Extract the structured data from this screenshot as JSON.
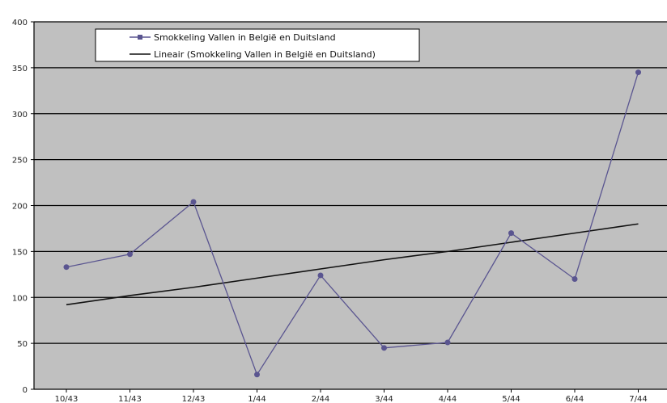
{
  "chart_data": {
    "type": "line",
    "title": "",
    "xlabel": "",
    "ylabel": "",
    "categories": [
      "10/43",
      "11/43",
      "12/43",
      "1/44",
      "2/44",
      "3/44",
      "4/44",
      "5/44",
      "6/44",
      "7/44"
    ],
    "ylim": [
      0,
      400
    ],
    "yticks": [
      0,
      50,
      100,
      150,
      200,
      250,
      300,
      350,
      400
    ],
    "grid": true,
    "legend_position": "top-left",
    "series": [
      {
        "name": "Smokkeling Vallen in België en Duitsland",
        "kind": "line-with-markers",
        "color": "#5a5590",
        "values": [
          133,
          147,
          204,
          16,
          124,
          45,
          51,
          170,
          120,
          345
        ]
      },
      {
        "name": "Lineair (Smokkeling Vallen in België en Duitsland)",
        "kind": "trendline",
        "color": "#111111",
        "values": [
          92,
          102,
          111,
          121,
          131,
          141,
          150,
          160,
          170,
          180
        ]
      }
    ],
    "colors": {
      "plot_background": "#c0c0c0",
      "gridline": "#000000"
    }
  }
}
